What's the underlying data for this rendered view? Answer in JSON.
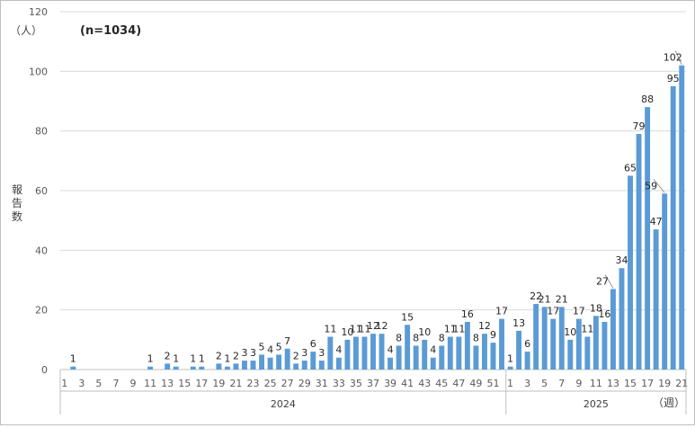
{
  "chart_data": {
    "type": "bar",
    "title": "",
    "annotation": "(n=1034)",
    "y_unit": "（人）",
    "ylabel": "報告数",
    "x_unit": "（週）",
    "ylim": [
      0,
      120
    ],
    "yticks": [
      0,
      20,
      40,
      60,
      80,
      100,
      120
    ],
    "grid": "horizontal",
    "color": "#5B9BD5",
    "groups": [
      {
        "year": "2024",
        "weeks": [
          1,
          2,
          3,
          4,
          5,
          6,
          7,
          8,
          9,
          10,
          11,
          12,
          13,
          14,
          15,
          16,
          17,
          18,
          19,
          20,
          21,
          22,
          23,
          24,
          25,
          26,
          27,
          28,
          29,
          30,
          31,
          32,
          33,
          34,
          35,
          36,
          37,
          38,
          39,
          40,
          41,
          42,
          43,
          44,
          45,
          46,
          47,
          48,
          49,
          50,
          51,
          52
        ],
        "values": [
          0,
          1,
          0,
          0,
          0,
          0,
          0,
          0,
          0,
          0,
          1,
          0,
          2,
          1,
          0,
          1,
          1,
          0,
          2,
          1,
          2,
          3,
          3,
          5,
          4,
          5,
          7,
          2,
          3,
          6,
          3,
          11,
          4,
          10,
          11,
          11,
          12,
          12,
          4,
          8,
          15,
          8,
          10,
          4,
          8,
          11,
          11,
          16,
          8,
          12,
          9,
          17
        ],
        "tick_labels": [
          "1",
          "3",
          "5",
          "7",
          "9",
          "11",
          "13",
          "15",
          "17",
          "19",
          "21",
          "23",
          "25",
          "27",
          "29",
          "31",
          "33",
          "35",
          "37",
          "39",
          "41",
          "43",
          "45",
          "47",
          "49",
          "51"
        ]
      },
      {
        "year": "2025",
        "weeks": [
          1,
          2,
          3,
          4,
          5,
          6,
          7,
          8,
          9,
          10,
          11,
          12,
          13,
          14,
          15,
          16,
          17,
          18,
          19,
          20,
          21
        ],
        "values": [
          1,
          13,
          6,
          22,
          21,
          17,
          21,
          10,
          17,
          11,
          18,
          16,
          27,
          34,
          65,
          79,
          88,
          47,
          59,
          95,
          102
        ],
        "tick_labels": [
          "1",
          "3",
          "5",
          "7",
          "9",
          "11",
          "13",
          "15",
          "17",
          "19",
          "21"
        ]
      }
    ]
  }
}
